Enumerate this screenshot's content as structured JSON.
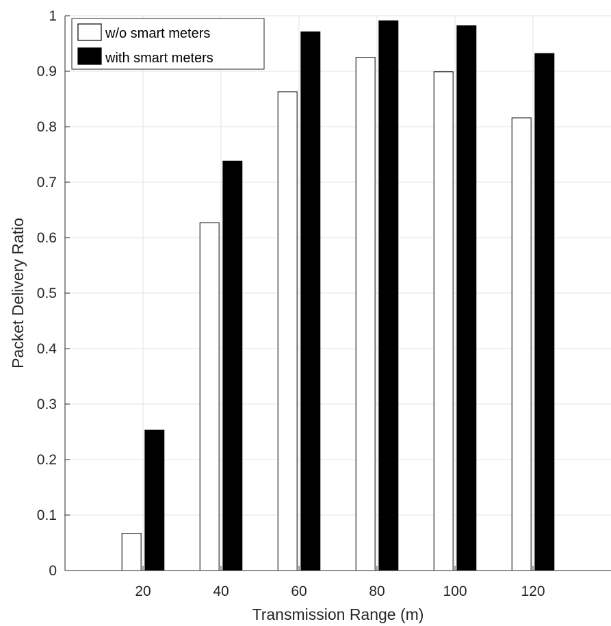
{
  "chart_data": {
    "type": "bar",
    "title": "",
    "xlabel": "Transmission Range (m)",
    "ylabel": "Packet Delivery Ratio",
    "categories": [
      "20",
      "40",
      "60",
      "80",
      "100",
      "120"
    ],
    "x": [
      20,
      40,
      60,
      80,
      100,
      120
    ],
    "xlim": [
      0,
      140
    ],
    "ylim": [
      0,
      1
    ],
    "yticks": [
      0,
      0.1,
      0.2,
      0.3,
      0.4,
      0.5,
      0.6,
      0.7,
      0.8,
      0.9,
      1
    ],
    "ytick_labels": [
      "0",
      "0.1",
      "0.2",
      "0.3",
      "0.4",
      "0.5",
      "0.6",
      "0.7",
      "0.8",
      "0.9",
      "1"
    ],
    "grid": true,
    "legend_position": "top-left",
    "series": [
      {
        "name": "w/o smart meters",
        "values": [
          0.067,
          0.627,
          0.863,
          0.925,
          0.899,
          0.816
        ],
        "fill": "#ffffff",
        "stroke": "#000000"
      },
      {
        "name": "with smart meters",
        "values": [
          0.253,
          0.738,
          0.971,
          0.991,
          0.982,
          0.932
        ],
        "fill": "#000000",
        "stroke": "#000000"
      }
    ]
  }
}
